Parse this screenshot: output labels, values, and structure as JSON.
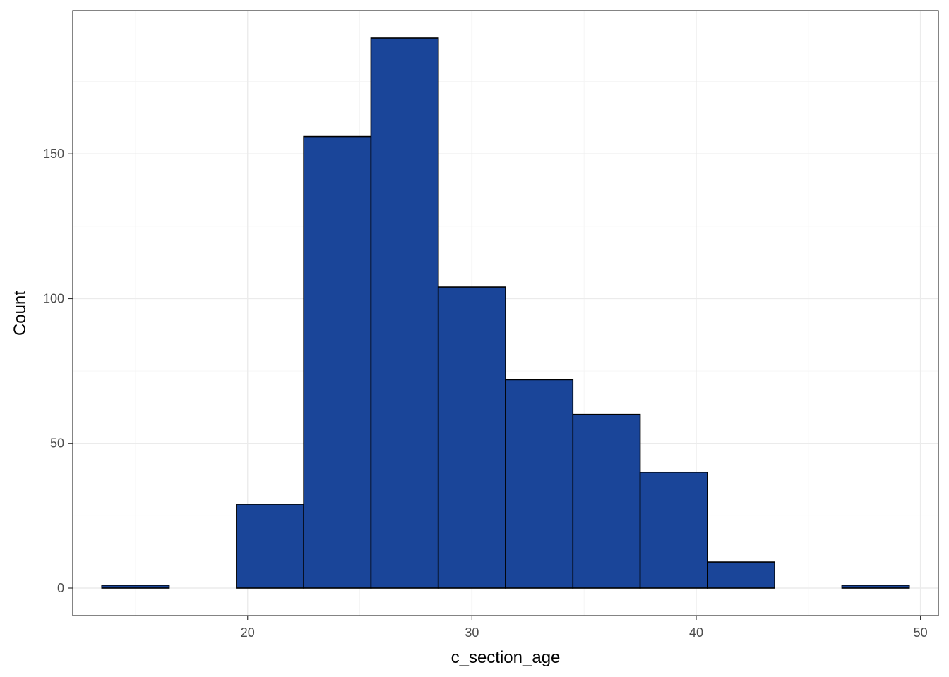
{
  "chart_data": {
    "type": "bar",
    "subtype": "histogram",
    "title": "",
    "xlabel": "c_section_age",
    "ylabel": "Count",
    "bin_width": 3,
    "bins": [
      {
        "x0": 13.5,
        "x1": 16.5,
        "count": 1
      },
      {
        "x0": 16.5,
        "x1": 19.5,
        "count": 0
      },
      {
        "x0": 19.5,
        "x1": 22.5,
        "count": 29
      },
      {
        "x0": 22.5,
        "x1": 25.5,
        "count": 156
      },
      {
        "x0": 25.5,
        "x1": 28.5,
        "count": 190
      },
      {
        "x0": 28.5,
        "x1": 31.5,
        "count": 104
      },
      {
        "x0": 31.5,
        "x1": 34.5,
        "count": 72
      },
      {
        "x0": 34.5,
        "x1": 37.5,
        "count": 60
      },
      {
        "x0": 37.5,
        "x1": 40.5,
        "count": 40
      },
      {
        "x0": 40.5,
        "x1": 43.5,
        "count": 9
      },
      {
        "x0": 43.5,
        "x1": 46.5,
        "count": 0
      },
      {
        "x0": 46.5,
        "x1": 49.5,
        "count": 1
      }
    ],
    "xlim": [
      12.2,
      50.8
    ],
    "ylim": [
      -9.5,
      199.5
    ],
    "x_ticks": [
      20,
      30,
      40,
      50
    ],
    "x_tick_labels": [
      "20",
      "30",
      "40",
      "50"
    ],
    "y_ticks": [
      0,
      50,
      100,
      150
    ],
    "y_tick_labels": [
      "0",
      "50",
      "100",
      "150"
    ],
    "x_minor": [
      15,
      25,
      35,
      45
    ],
    "y_minor": [
      25,
      75,
      125,
      175
    ],
    "grid": true,
    "legend": "none",
    "colors": {
      "bar_fill": "#1a4599",
      "bar_outline": "#000000",
      "grid": "#ebebeb",
      "border": "#333333"
    }
  }
}
